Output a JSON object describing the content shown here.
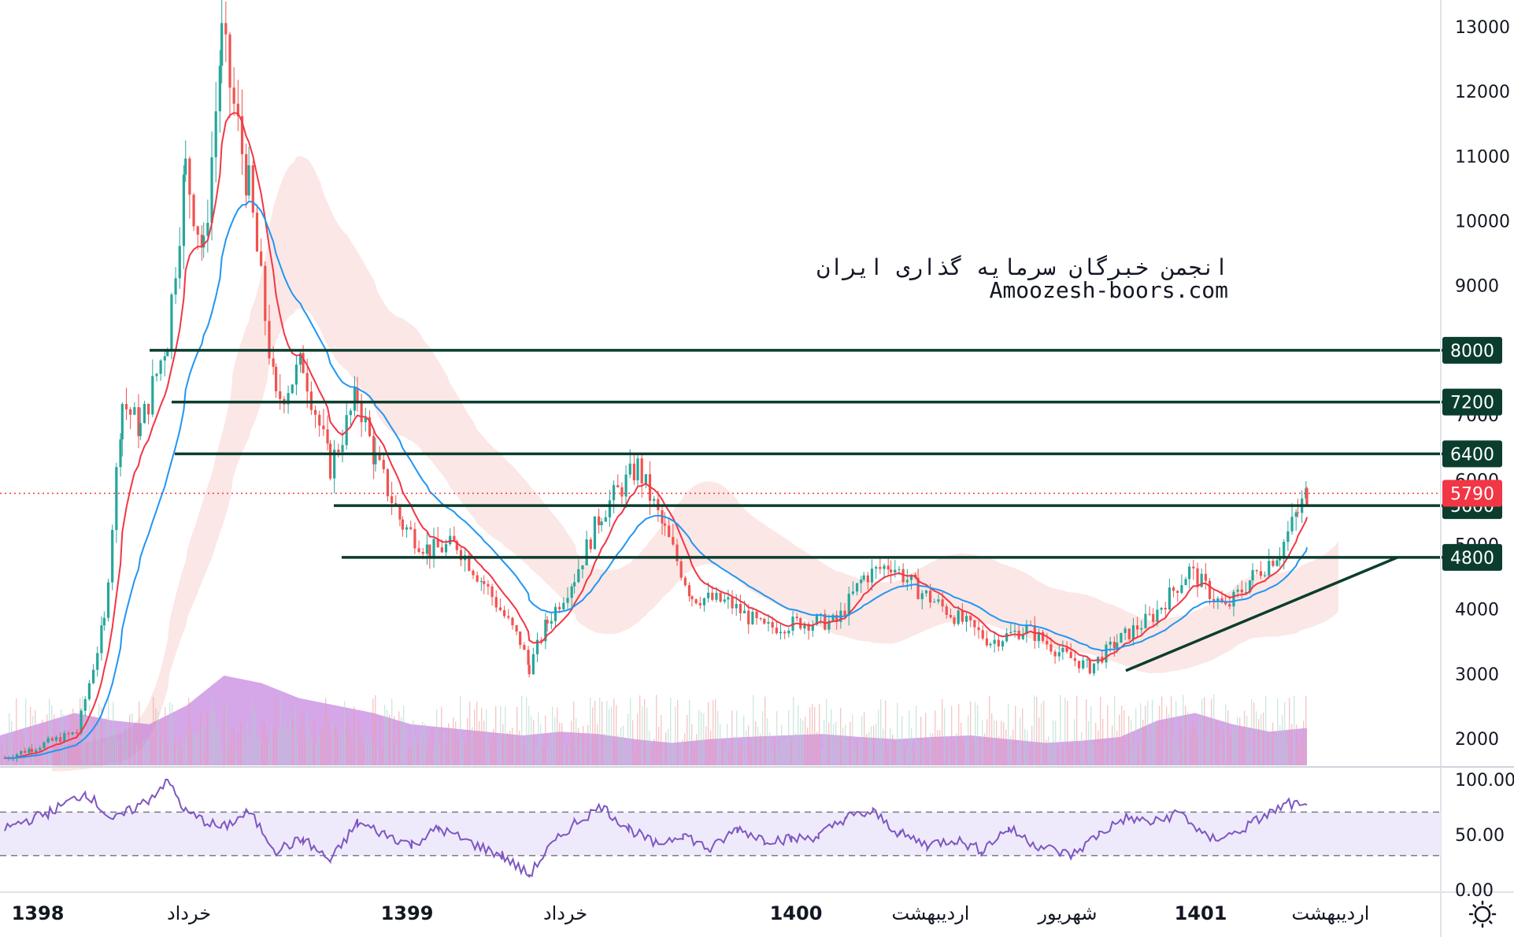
{
  "watermark": {
    "line1": "انجمن خبرگان سرمایه گذاری ایران",
    "line2": "Amoozesh-boors.com"
  },
  "chart_data": {
    "type": "candlestick",
    "y_axis": {
      "ticks": [
        "13000",
        "12000",
        "11000",
        "10000",
        "9000",
        "8000",
        "7000",
        "6000",
        "5000",
        "4000",
        "3000",
        "2000"
      ],
      "range": [
        1550,
        13400
      ]
    },
    "x_axis": {
      "labels": [
        {
          "text": "1398",
          "bold": true
        },
        {
          "text": "خرداد",
          "bold": false
        },
        {
          "text": "1399",
          "bold": true
        },
        {
          "text": "خرداد",
          "bold": false
        },
        {
          "text": "1400",
          "bold": true
        },
        {
          "text": "اردیبهشت",
          "bold": false
        },
        {
          "text": "شهریور",
          "bold": false
        },
        {
          "text": "1401",
          "bold": true
        },
        {
          "text": "اردیبهشت",
          "bold": false
        }
      ]
    },
    "horizontal_levels": [
      {
        "value": 8000,
        "label": "8000"
      },
      {
        "value": 7200,
        "label": "7200"
      },
      {
        "value": 6400,
        "label": "6400"
      },
      {
        "value": 5600,
        "label": "5600"
      },
      {
        "value": 4800,
        "label": "4800"
      }
    ],
    "last_price": {
      "value": 5790,
      "label": "5790"
    },
    "trendline": {
      "from": {
        "date": "1400 late Shahrivar",
        "price": 3050
      },
      "to": {
        "date": "1401 late Ordibehesht",
        "price": 4800
      }
    },
    "price_anchors": [
      [
        0,
        1700
      ],
      [
        3,
        1850
      ],
      [
        8,
        2100
      ],
      [
        11,
        3800
      ],
      [
        13,
        7200
      ],
      [
        15,
        6800
      ],
      [
        18,
        8200
      ],
      [
        20,
        10800
      ],
      [
        22,
        9500
      ],
      [
        24,
        12800
      ],
      [
        27,
        10500
      ],
      [
        30,
        7200
      ],
      [
        33,
        7800
      ],
      [
        36,
        6200
      ],
      [
        39,
        7300
      ],
      [
        41,
        6300
      ],
      [
        44,
        5300
      ],
      [
        47,
        4900
      ],
      [
        50,
        5000
      ],
      [
        53,
        4400
      ],
      [
        57,
        3500
      ],
      [
        58,
        3100
      ],
      [
        60,
        3800
      ],
      [
        63,
        4500
      ],
      [
        66,
        5500
      ],
      [
        70,
        6200
      ],
      [
        73,
        5200
      ],
      [
        76,
        4200
      ],
      [
        80,
        4100
      ],
      [
        84,
        3700
      ],
      [
        88,
        3800
      ],
      [
        92,
        3800
      ],
      [
        95,
        4500
      ],
      [
        98,
        4700
      ],
      [
        101,
        4300
      ],
      [
        105,
        3900
      ],
      [
        109,
        3500
      ],
      [
        113,
        3700
      ],
      [
        117,
        3300
      ],
      [
        120,
        3100
      ],
      [
        123,
        3500
      ],
      [
        127,
        3900
      ],
      [
        131,
        4600
      ],
      [
        135,
        4000
      ],
      [
        138,
        4500
      ],
      [
        141,
        4900
      ],
      [
        143,
        5500
      ],
      [
        144,
        5790
      ]
    ],
    "volume_shape": [
      40,
      55,
      70,
      60,
      55,
      80,
      120,
      110,
      90,
      80,
      70,
      55,
      50,
      45,
      40,
      45,
      42,
      35,
      30,
      35,
      38,
      40,
      42,
      38,
      35,
      38,
      40,
      35,
      30,
      33,
      38,
      60,
      70,
      55,
      45,
      50
    ],
    "rsi": {
      "ticks": [
        "100.00",
        "50.00",
        "0.00"
      ],
      "band": [
        30,
        70
      ],
      "anchors": [
        [
          0,
          55
        ],
        [
          5,
          70
        ],
        [
          9,
          88
        ],
        [
          12,
          62
        ],
        [
          16,
          82
        ],
        [
          18,
          100
        ],
        [
          20,
          70
        ],
        [
          24,
          55
        ],
        [
          27,
          70
        ],
        [
          30,
          35
        ],
        [
          33,
          45
        ],
        [
          36,
          25
        ],
        [
          39,
          60
        ],
        [
          42,
          50
        ],
        [
          45,
          40
        ],
        [
          48,
          55
        ],
        [
          52,
          40
        ],
        [
          55,
          30
        ],
        [
          58,
          12
        ],
        [
          60,
          35
        ],
        [
          63,
          60
        ],
        [
          66,
          75
        ],
        [
          69,
          55
        ],
        [
          72,
          40
        ],
        [
          75,
          50
        ],
        [
          78,
          35
        ],
        [
          81,
          55
        ],
        [
          84,
          45
        ],
        [
          87,
          45
        ],
        [
          90,
          48
        ],
        [
          93,
          65
        ],
        [
          96,
          70
        ],
        [
          99,
          50
        ],
        [
          102,
          40
        ],
        [
          105,
          45
        ],
        [
          108,
          35
        ],
        [
          111,
          55
        ],
        [
          114,
          40
        ],
        [
          118,
          30
        ],
        [
          121,
          50
        ],
        [
          124,
          65
        ],
        [
          127,
          60
        ],
        [
          130,
          70
        ],
        [
          133,
          45
        ],
        [
          136,
          50
        ],
        [
          139,
          65
        ],
        [
          142,
          78
        ],
        [
          144,
          73
        ]
      ]
    },
    "colors": {
      "up": "#26a69a",
      "down": "#ef5350",
      "ema_fast": "#f23645",
      "ema_slow": "#2196f3",
      "level_line": "#0b3d2e",
      "last_price_tag": "#f23645",
      "volume_fill": "#b96ad9",
      "rsi_line": "#7e57c2",
      "rsi_band": "#efeafb"
    }
  }
}
